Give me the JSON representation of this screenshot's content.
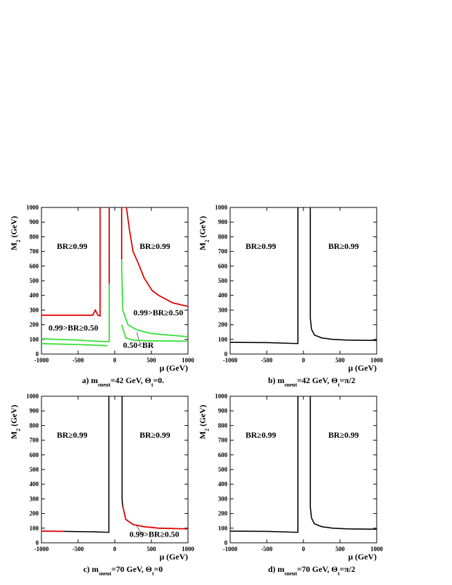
{
  "chart_data": [
    {
      "type": "line",
      "xlabel": "μ (GeV)",
      "ylabel": [
        "M",
        "2",
        " (GeV)"
      ],
      "caption": [
        "a) m",
        "sneut",
        "=42 GeV, Θ",
        "t",
        "=0."
      ],
      "xlim": [
        -1000,
        1000
      ],
      "ylim": [
        0,
        1000
      ],
      "xticks": [
        -1000,
        -500,
        0,
        500,
        1000
      ],
      "yticks": [
        0,
        100,
        200,
        300,
        400,
        500,
        600,
        700,
        800,
        900,
        1000
      ],
      "annotations": [
        "BR≥0.99",
        "BR≥0.99",
        "0.99>BR≥0.50",
        "0.99>BR≥0.50",
        "0.50<BR"
      ],
      "series": [
        {
          "color": "#e00000",
          "x": [
            -1000,
            -300,
            -265,
            -230,
            -200,
            -200
          ],
          "values": [
            265,
            265,
            300,
            265,
            260,
            1000
          ]
        },
        {
          "color": "#e00000",
          "x": [
            -75,
            -75
          ],
          "values": [
            1000,
            480
          ]
        },
        {
          "color": "#33e033",
          "x": [
            -75,
            -75
          ],
          "values": [
            480,
            85
          ]
        },
        {
          "color": "#33e033",
          "x": [
            -1000,
            -500,
            -150,
            -75
          ],
          "values": [
            104,
            95,
            85,
            85
          ]
        },
        {
          "color": "#33e033",
          "x": [
            -1000,
            -500,
            -100
          ],
          "values": [
            71,
            65,
            57
          ]
        },
        {
          "color": "#e00000",
          "x": [
            95,
            95
          ],
          "values": [
            1000,
            645
          ]
        },
        {
          "color": "#33e033",
          "x": [
            95,
            95,
            110,
            180,
            300,
            500,
            1000
          ],
          "values": [
            645,
            600,
            300,
            200,
            165,
            140,
            118
          ]
        },
        {
          "color": "#33e033",
          "x": [
            95,
            150,
            250,
            500,
            1000
          ],
          "values": [
            200,
            110,
            95,
            90,
            88
          ]
        },
        {
          "color": "#e00000",
          "x": [
            160,
            200,
            250,
            321,
            400,
            509,
            600,
            792,
            1000
          ],
          "values": [
            1000,
            850,
            700,
            620,
            520,
            434,
            400,
            349,
            325
          ]
        }
      ]
    },
    {
      "type": "line",
      "xlabel": "μ (GeV)",
      "ylabel": [
        "M",
        "2",
        " (GeV)"
      ],
      "caption": [
        "b) m",
        "sneut",
        "=42 GeV, Θ",
        "t",
        "=π/2"
      ],
      "xlim": [
        -1000,
        1000
      ],
      "ylim": [
        0,
        1000
      ],
      "xticks": [
        -1000,
        -500,
        0,
        500,
        1000
      ],
      "yticks": [
        0,
        100,
        200,
        300,
        400,
        500,
        600,
        700,
        800,
        900,
        1000
      ],
      "annotations": [
        "BR≥0.99",
        "BR≥0.99"
      ],
      "series": [
        {
          "color": "#000000",
          "x": [
            -1000,
            -500,
            -100,
            -75,
            -75
          ],
          "values": [
            80,
            78,
            72,
            72,
            1000
          ]
        },
        {
          "color": "#000000",
          "x": [
            94,
            94,
            110,
            150,
            250,
            400,
            600,
            1000
          ],
          "values": [
            1000,
            250,
            170,
            130,
            110,
            100,
            95,
            93
          ]
        }
      ]
    },
    {
      "type": "line",
      "xlabel": "μ (GeV)",
      "ylabel": [
        "M",
        "2",
        " (GeV)"
      ],
      "caption": [
        "c) m",
        "sneut",
        "=70 GeV, Θ",
        "t",
        "=0"
      ],
      "xlim": [
        -1000,
        1000
      ],
      "ylim": [
        0,
        1000
      ],
      "xticks": [
        -1000,
        -500,
        0,
        500,
        1000
      ],
      "yticks": [
        0,
        100,
        200,
        300,
        400,
        500,
        600,
        700,
        800,
        900,
        1000
      ],
      "annotations": [
        "BR≥0.99",
        "BR≥0.99",
        "0.99>BR≥0.50"
      ],
      "series": [
        {
          "color": "#000000",
          "x": [
            -700,
            -300,
            -100,
            -80,
            -80
          ],
          "values": [
            78,
            75,
            72,
            72,
            1000
          ]
        },
        {
          "color": "#e00000",
          "x": [
            -1000,
            -700
          ],
          "values": [
            80,
            78
          ]
        },
        {
          "color": "#000000",
          "x": [
            100,
            100,
            110
          ],
          "values": [
            1000,
            300,
            250
          ]
        },
        {
          "color": "#e00000",
          "x": [
            110,
            150,
            250,
            400,
            600,
            1000
          ],
          "values": [
            250,
            160,
            125,
            110,
            100,
            95
          ]
        }
      ]
    },
    {
      "type": "line",
      "xlabel": "μ (GeV)",
      "ylabel": [
        "M",
        "2",
        " (GeV)"
      ],
      "caption": [
        "d) m",
        "sneut",
        "=70 GeV, Θ",
        "t",
        "=π/2"
      ],
      "xlim": [
        -1000,
        1000
      ],
      "ylim": [
        0,
        1000
      ],
      "xticks": [
        -1000,
        -500,
        0,
        500,
        1000
      ],
      "yticks": [
        0,
        100,
        200,
        300,
        400,
        500,
        600,
        700,
        800,
        900,
        1000
      ],
      "annotations": [
        "BR≥0.99",
        "BR≥0.99"
      ],
      "series": [
        {
          "color": "#000000",
          "x": [
            -1000,
            -500,
            -100,
            -75,
            -75
          ],
          "values": [
            80,
            78,
            72,
            72,
            1000
          ]
        },
        {
          "color": "#000000",
          "x": [
            94,
            94,
            110,
            150,
            250,
            400,
            600,
            1000
          ],
          "values": [
            1000,
            250,
            170,
            130,
            110,
            100,
            95,
            93
          ]
        }
      ]
    }
  ]
}
